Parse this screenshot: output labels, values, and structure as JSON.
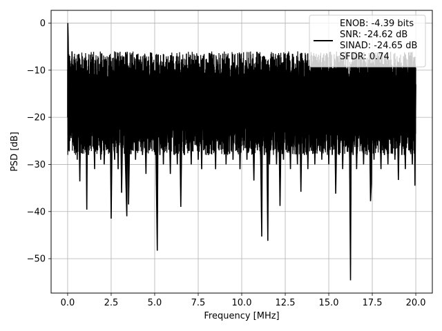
{
  "chart_data": {
    "type": "line",
    "title": "",
    "xlabel": "Frequency [MHz]",
    "ylabel": "PSD [dB]",
    "xlim": [
      -0.95,
      20.95
    ],
    "ylim": [
      -57.3,
      2.7
    ],
    "x_ticks": [
      0.0,
      2.5,
      5.0,
      7.5,
      10.0,
      12.5,
      15.0,
      17.5,
      20.0
    ],
    "x_tick_labels": [
      "0.0",
      "2.5",
      "5.0",
      "7.5",
      "10.0",
      "12.5",
      "15.0",
      "17.5",
      "20.0"
    ],
    "y_ticks": [
      0,
      -10,
      -20,
      -30,
      -40,
      -50
    ],
    "y_tick_labels": [
      "0",
      "−10",
      "−20",
      "−30",
      "−40",
      "−50"
    ],
    "grid": true,
    "legend_position": "top-right",
    "legend_lines": [
      "ENOB: -4.39 bits",
      "SNR: -24.62 dB",
      "SINAD: -24.65 dB",
      "SFDR: 0.74"
    ],
    "series": [
      {
        "color": "#000000",
        "points": [
          [
            0.0,
            -20
          ],
          [
            0.01,
            0.0
          ],
          [
            0.03,
            -3.0
          ],
          [
            0.06,
            -12
          ],
          [
            0.1,
            -23
          ],
          [
            0.14,
            -8
          ],
          [
            0.2,
            -24
          ],
          [
            0.25,
            -6
          ],
          [
            0.32,
            -19
          ],
          [
            0.38,
            -9
          ],
          [
            0.42,
            -25
          ],
          [
            0.5,
            -12
          ],
          [
            0.55,
            -29
          ],
          [
            0.6,
            -10
          ],
          [
            0.65,
            -22
          ],
          [
            0.7,
            -33.6
          ],
          [
            0.78,
            -11
          ],
          [
            0.85,
            -25
          ],
          [
            0.9,
            -13
          ],
          [
            1.0,
            -26
          ],
          [
            1.05,
            -17
          ],
          [
            1.1,
            -39.6
          ],
          [
            1.15,
            -12
          ],
          [
            1.2,
            -28
          ],
          [
            1.3,
            -9
          ],
          [
            1.38,
            -24
          ],
          [
            1.45,
            -15
          ],
          [
            1.55,
            -31
          ],
          [
            1.62,
            -8
          ],
          [
            1.7,
            -25
          ],
          [
            1.8,
            -14
          ],
          [
            1.9,
            -29
          ],
          [
            2.0,
            -10
          ],
          [
            2.1,
            -30
          ],
          [
            2.2,
            -13
          ],
          [
            2.3,
            -25
          ],
          [
            2.4,
            -9
          ],
          [
            2.45,
            -22
          ],
          [
            2.5,
            -41.5
          ],
          [
            2.58,
            -15
          ],
          [
            2.7,
            -29
          ],
          [
            2.8,
            -10
          ],
          [
            2.9,
            -31
          ],
          [
            3.0,
            -8
          ],
          [
            3.1,
            -36
          ],
          [
            3.2,
            -13
          ],
          [
            3.3,
            -27
          ],
          [
            3.4,
            -41.0
          ],
          [
            3.45,
            -12
          ],
          [
            3.5,
            -38.5
          ],
          [
            3.6,
            -15
          ],
          [
            3.7,
            -27
          ],
          [
            3.8,
            -9
          ],
          [
            3.9,
            -29
          ],
          [
            4.0,
            -14
          ],
          [
            4.1,
            -25
          ],
          [
            4.2,
            -10
          ],
          [
            4.3,
            -28
          ],
          [
            4.4,
            -16
          ],
          [
            4.5,
            -32
          ],
          [
            4.6,
            -8
          ],
          [
            4.7,
            -27
          ],
          [
            4.8,
            -13
          ],
          [
            4.9,
            -24
          ],
          [
            5.0,
            -10
          ],
          [
            5.08,
            -29
          ],
          [
            5.15,
            -48.3
          ],
          [
            5.2,
            -14
          ],
          [
            5.3,
            -28
          ],
          [
            5.4,
            -9
          ],
          [
            5.5,
            -30
          ],
          [
            5.6,
            -12
          ],
          [
            5.7,
            -26
          ],
          [
            5.8,
            -15
          ],
          [
            5.9,
            -32
          ],
          [
            6.0,
            -8
          ],
          [
            6.1,
            -27
          ],
          [
            6.2,
            -14
          ],
          [
            6.3,
            -30
          ],
          [
            6.4,
            -10
          ],
          [
            6.5,
            -39.0
          ],
          [
            6.6,
            -13
          ],
          [
            6.7,
            -28
          ],
          [
            6.8,
            -9
          ],
          [
            6.9,
            -26
          ],
          [
            7.0,
            -15
          ],
          [
            7.1,
            -30
          ],
          [
            7.2,
            -11
          ],
          [
            7.3,
            -24
          ],
          [
            7.4,
            -8
          ],
          [
            7.5,
            -29
          ],
          [
            7.6,
            -13
          ],
          [
            7.7,
            -31
          ],
          [
            7.8,
            -10
          ],
          [
            7.9,
            -26
          ],
          [
            8.0,
            -14
          ],
          [
            8.1,
            -28
          ],
          [
            8.2,
            -9
          ],
          [
            8.3,
            -25
          ],
          [
            8.4,
            -15
          ],
          [
            8.5,
            -31
          ],
          [
            8.6,
            -8
          ],
          [
            8.7,
            -27
          ],
          [
            8.8,
            -12
          ],
          [
            8.9,
            -25
          ],
          [
            9.0,
            -10
          ],
          [
            9.1,
            -30
          ],
          [
            9.2,
            -14
          ],
          [
            9.3,
            -26
          ],
          [
            9.4,
            -9
          ],
          [
            9.5,
            -29
          ],
          [
            9.6,
            -13
          ],
          [
            9.7,
            -27
          ],
          [
            9.8,
            -11
          ],
          [
            9.9,
            -31
          ],
          [
            10.0,
            -15
          ],
          [
            10.1,
            -26
          ],
          [
            10.2,
            -9
          ],
          [
            10.3,
            -29
          ],
          [
            10.4,
            -12
          ],
          [
            10.5,
            -25
          ],
          [
            10.6,
            -16
          ],
          [
            10.7,
            -33.4
          ],
          [
            10.8,
            -10
          ],
          [
            10.9,
            -27
          ],
          [
            11.0,
            -13
          ],
          [
            11.1,
            -31
          ],
          [
            11.15,
            -45.3
          ],
          [
            11.2,
            -12
          ],
          [
            11.3,
            -28
          ],
          [
            11.4,
            -9
          ],
          [
            11.45,
            -28
          ],
          [
            11.5,
            -46.2
          ],
          [
            11.55,
            -14
          ],
          [
            11.6,
            -30
          ],
          [
            11.7,
            -10
          ],
          [
            11.8,
            -27
          ],
          [
            11.9,
            -14
          ],
          [
            12.0,
            -30
          ],
          [
            12.1,
            -11
          ],
          [
            12.2,
            -38.8
          ],
          [
            12.3,
            -13
          ],
          [
            12.4,
            -29
          ],
          [
            12.5,
            -9
          ],
          [
            12.6,
            -26
          ],
          [
            12.7,
            -15
          ],
          [
            12.8,
            -31
          ],
          [
            12.9,
            -10
          ],
          [
            13.0,
            -27
          ],
          [
            13.1,
            -13
          ],
          [
            13.2,
            -30
          ],
          [
            13.3,
            -8
          ],
          [
            13.4,
            -35.8
          ],
          [
            13.5,
            -12
          ],
          [
            13.6,
            -28
          ],
          [
            13.7,
            -10
          ],
          [
            13.8,
            -31
          ],
          [
            13.9,
            -14
          ],
          [
            14.0,
            -27
          ],
          [
            14.1,
            -9
          ],
          [
            14.2,
            -30
          ],
          [
            14.3,
            -13
          ],
          [
            14.4,
            -26
          ],
          [
            14.5,
            -11
          ],
          [
            14.6,
            -29
          ],
          [
            14.7,
            -15
          ],
          [
            14.8,
            -27
          ],
          [
            14.9,
            -10
          ],
          [
            15.0,
            -30
          ],
          [
            15.1,
            -13
          ],
          [
            15.2,
            -28
          ],
          [
            15.3,
            -9
          ],
          [
            15.4,
            -36.2
          ],
          [
            15.5,
            -14
          ],
          [
            15.6,
            -28
          ],
          [
            15.7,
            -11
          ],
          [
            15.8,
            -31
          ],
          [
            15.9,
            -14
          ],
          [
            16.0,
            -26
          ],
          [
            16.1,
            -10
          ],
          [
            16.2,
            -29
          ],
          [
            16.25,
            -54.6
          ],
          [
            16.3,
            -13
          ],
          [
            16.4,
            -28
          ],
          [
            16.5,
            -9
          ],
          [
            16.6,
            -31
          ],
          [
            16.7,
            -15
          ],
          [
            16.8,
            -26
          ],
          [
            16.9,
            -11
          ],
          [
            17.0,
            -30
          ],
          [
            17.1,
            -13
          ],
          [
            17.2,
            -28
          ],
          [
            17.3,
            -9
          ],
          [
            17.4,
            -37.8
          ],
          [
            17.45,
            -34.0
          ],
          [
            17.5,
            -12
          ],
          [
            17.6,
            -29
          ],
          [
            17.7,
            -10
          ],
          [
            17.8,
            -26
          ],
          [
            17.9,
            -15
          ],
          [
            18.0,
            -31
          ],
          [
            18.1,
            -11
          ],
          [
            18.2,
            -28
          ],
          [
            18.3,
            -13
          ],
          [
            18.4,
            -30
          ],
          [
            18.5,
            -9
          ],
          [
            18.6,
            -27
          ],
          [
            18.7,
            -14
          ],
          [
            18.8,
            -29
          ],
          [
            18.9,
            -10
          ],
          [
            19.0,
            -33.3
          ],
          [
            19.1,
            -12
          ],
          [
            19.2,
            -28
          ],
          [
            19.3,
            -15
          ],
          [
            19.4,
            -31
          ],
          [
            19.5,
            -10
          ],
          [
            19.6,
            -27
          ],
          [
            19.7,
            -13
          ],
          [
            19.8,
            -30
          ],
          [
            19.9,
            -9
          ],
          [
            19.95,
            -34.5
          ],
          [
            20.0,
            -13
          ]
        ]
      }
    ]
  }
}
